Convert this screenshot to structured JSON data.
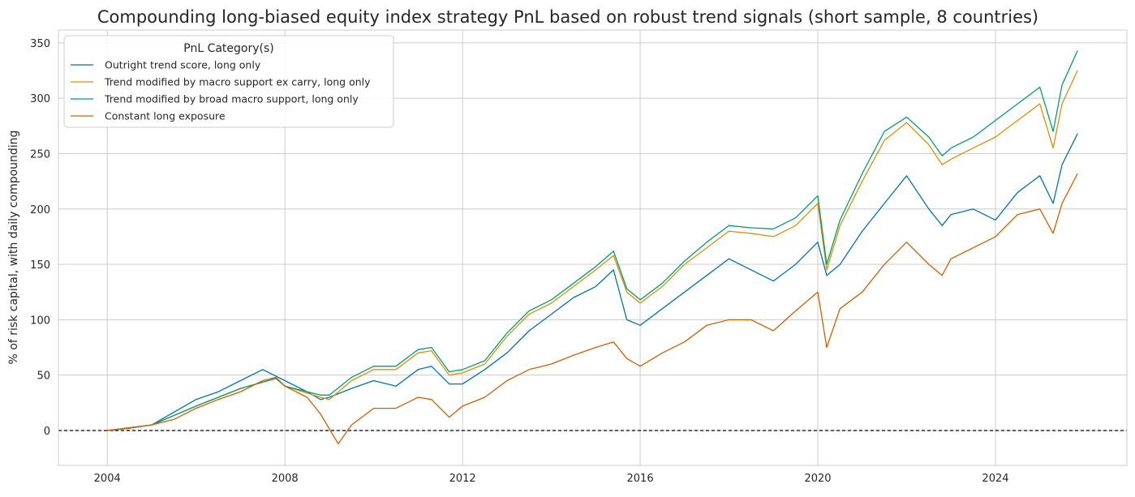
{
  "chart_data": {
    "type": "line",
    "title": "Compounding long-biased equity index strategy PnL based on robust trend signals (short sample, 8 countries)",
    "xlabel": "",
    "ylabel": "% of risk capital, with daily compounding",
    "xlim": [
      2002.9,
      2026.96
    ],
    "ylim": [
      -31.5,
      361.6
    ],
    "x_ticks": [
      2004,
      2008,
      2012,
      2016,
      2020,
      2024
    ],
    "y_ticks": [
      0,
      50,
      100,
      150,
      200,
      250,
      300,
      350
    ],
    "grid": true,
    "reference_line": {
      "y": 0,
      "style": "dashed",
      "color": "#000000"
    },
    "legend": {
      "title": "PnL Category(s)",
      "placement": "top-left"
    },
    "series": [
      {
        "name": "Outright trend score, long only",
        "color": "#0173b2",
        "x": [
          2004,
          2005,
          2006,
          2006.5,
          2007,
          2007.5,
          2008,
          2008.5,
          2008.8,
          2009,
          2009.5,
          2010,
          2010.5,
          2011,
          2011.3,
          2011.7,
          2012,
          2012.5,
          2013,
          2013.5,
          2014,
          2014.5,
          2015,
          2015.4,
          2015.7,
          2016,
          2016.5,
          2017,
          2017.5,
          2018,
          2018.5,
          2019,
          2019.5,
          2020,
          2020.2,
          2020.5,
          2021,
          2021.5,
          2022,
          2022.5,
          2022.8,
          2023,
          2023.5,
          2024,
          2024.5,
          2025,
          2025.3,
          2025.5,
          2025.85
        ],
        "y": [
          0,
          5,
          28,
          35,
          45,
          55,
          45,
          35,
          28,
          30,
          38,
          45,
          40,
          55,
          58,
          42,
          42,
          55,
          70,
          90,
          105,
          120,
          130,
          145,
          100,
          95,
          110,
          125,
          140,
          155,
          145,
          135,
          150,
          170,
          140,
          150,
          180,
          205,
          230,
          200,
          185,
          195,
          200,
          190,
          215,
          230,
          205,
          240,
          268
        ]
      },
      {
        "name": "Trend modified by macro support ex carry, long only",
        "color": "#de8f05",
        "x": [
          2004,
          2005,
          2006,
          2007,
          2007.8,
          2008,
          2008.8,
          2009,
          2009.5,
          2010,
          2010.5,
          2011,
          2011.3,
          2011.7,
          2012,
          2012.5,
          2013,
          2013.5,
          2014,
          2014.5,
          2015,
          2015.4,
          2015.7,
          2016,
          2016.5,
          2017,
          2017.5,
          2018,
          2018.5,
          2019,
          2019.5,
          2020,
          2020.2,
          2020.5,
          2021,
          2021.5,
          2022,
          2022.5,
          2022.8,
          2023,
          2023.5,
          2024,
          2024.5,
          2025,
          2025.3,
          2025.5,
          2025.85
        ],
        "y": [
          0,
          5,
          22,
          38,
          47,
          40,
          30,
          28,
          45,
          55,
          55,
          70,
          72,
          50,
          52,
          60,
          85,
          105,
          115,
          130,
          145,
          158,
          125,
          115,
          130,
          150,
          165,
          180,
          178,
          175,
          185,
          205,
          145,
          185,
          225,
          262,
          278,
          258,
          240,
          245,
          255,
          265,
          280,
          295,
          255,
          295,
          325
        ]
      },
      {
        "name": "Trend modified by broad macro support, long only",
        "color": "#029e73",
        "x": [
          2004,
          2005,
          2006,
          2007,
          2007.8,
          2008,
          2008.8,
          2009,
          2009.5,
          2010,
          2010.5,
          2011,
          2011.3,
          2011.7,
          2012,
          2012.5,
          2013,
          2013.5,
          2014,
          2014.5,
          2015,
          2015.4,
          2015.7,
          2016,
          2016.5,
          2017,
          2017.5,
          2018,
          2018.5,
          2019,
          2019.5,
          2020,
          2020.2,
          2020.5,
          2021,
          2021.5,
          2022,
          2022.5,
          2022.8,
          2023,
          2023.5,
          2024,
          2024.5,
          2025,
          2025.3,
          2025.5,
          2025.85
        ],
        "y": [
          0,
          5,
          22,
          38,
          47,
          40,
          32,
          32,
          48,
          58,
          58,
          73,
          75,
          53,
          55,
          63,
          88,
          108,
          118,
          133,
          148,
          162,
          128,
          118,
          133,
          153,
          170,
          185,
          183,
          182,
          192,
          212,
          150,
          190,
          232,
          270,
          283,
          265,
          248,
          255,
          265,
          280,
          295,
          310,
          270,
          312,
          343
        ]
      },
      {
        "name": "Constant long exposure",
        "color": "#d55e00",
        "x": [
          2004,
          2004.5,
          2005,
          2005.5,
          2006,
          2006.5,
          2007,
          2007.5,
          2007.8,
          2008,
          2008.5,
          2008.8,
          2009.2,
          2009.5,
          2010,
          2010.5,
          2011,
          2011.3,
          2011.7,
          2012,
          2012.5,
          2013,
          2013.5,
          2014,
          2014.5,
          2015,
          2015.4,
          2015.7,
          2016,
          2016.5,
          2017,
          2017.5,
          2018,
          2018.5,
          2019,
          2019.5,
          2020,
          2020.2,
          2020.5,
          2021,
          2021.5,
          2022,
          2022.5,
          2022.8,
          2023,
          2023.5,
          2024,
          2024.5,
          2025,
          2025.3,
          2025.5,
          2025.85
        ],
        "y": [
          0,
          2,
          5,
          10,
          20,
          28,
          35,
          45,
          48,
          40,
          30,
          15,
          -12,
          5,
          20,
          20,
          30,
          28,
          12,
          22,
          30,
          45,
          55,
          60,
          68,
          75,
          80,
          65,
          58,
          70,
          80,
          95,
          100,
          100,
          90,
          108,
          125,
          75,
          110,
          125,
          150,
          170,
          150,
          140,
          155,
          165,
          175,
          195,
          200,
          178,
          205,
          232
        ]
      }
    ]
  }
}
